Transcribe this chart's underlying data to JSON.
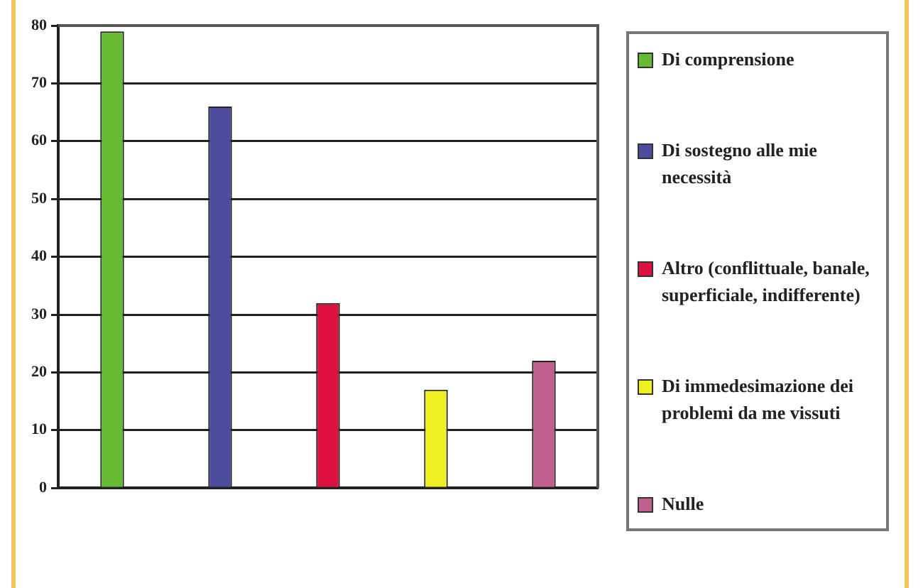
{
  "chart_data": {
    "type": "bar",
    "categories": [
      null
    ],
    "series": [
      {
        "name": "Di comprensione",
        "color": "#66bb33",
        "values": [
          79
        ]
      },
      {
        "name": "Di sostegno alle mie necessità",
        "color": "#4c4c9c",
        "values": [
          66
        ]
      },
      {
        "name": "Altro (conflittuale, banale, superficiale, indifferente)",
        "color": "#dd1040",
        "values": [
          32
        ]
      },
      {
        "name": "Di immedesimazione dei problemi da me vissuti",
        "color": "#eeee22",
        "values": [
          17
        ]
      },
      {
        "name": "Nulle",
        "color": "#c06090",
        "values": [
          22
        ]
      }
    ],
    "ylim": [
      0,
      80
    ],
    "yticks": [
      0,
      10,
      20,
      30,
      40,
      50,
      60,
      70,
      80
    ],
    "grid": "y",
    "legend": "right"
  }
}
